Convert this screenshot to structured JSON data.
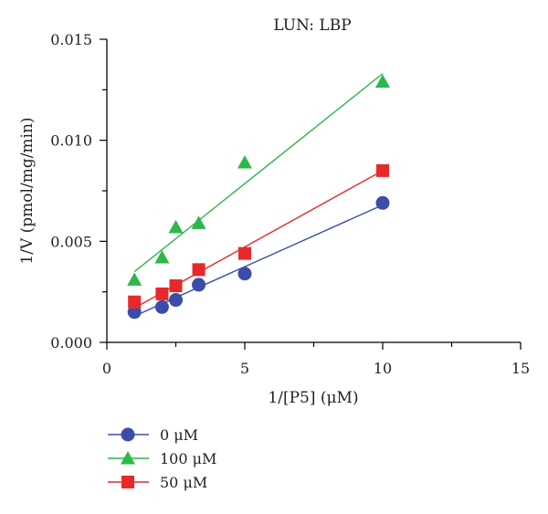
{
  "chart_data": {
    "type": "scatter",
    "title": "LUN: LBP",
    "xlabel": "1/[P5] (μM)",
    "ylabel": "1/V (pmol/mg/min)",
    "xlim": [
      0,
      15
    ],
    "ylim": [
      0,
      0.015
    ],
    "x_ticks": [
      "0",
      "5",
      "10",
      "15"
    ],
    "y_ticks": [
      "0.000",
      "0.005",
      "0.010",
      "0.015"
    ],
    "legend_position": "bottom-left",
    "series": [
      {
        "name": "0 μM",
        "marker": "circle",
        "color": "#3b4da8",
        "x": [
          1,
          2,
          2.5,
          3.33,
          5,
          10
        ],
        "y": [
          0.0015,
          0.00175,
          0.0021,
          0.00285,
          0.0034,
          0.0069
        ],
        "fit_line": {
          "x": [
            1,
            10
          ],
          "y": [
            0.0013,
            0.0068
          ]
        }
      },
      {
        "name": "100 μM",
        "marker": "triangle",
        "color": "#2db84a",
        "x": [
          1,
          2,
          2.5,
          3.33,
          5,
          10
        ],
        "y": [
          0.0031,
          0.0042,
          0.0057,
          0.0059,
          0.0089,
          0.0129
        ],
        "fit_line": {
          "x": [
            1,
            10
          ],
          "y": [
            0.0035,
            0.0133
          ]
        }
      },
      {
        "name": "50 μM",
        "marker": "square",
        "color": "#e8282a",
        "x": [
          1,
          2,
          2.5,
          3.33,
          5,
          10
        ],
        "y": [
          0.002,
          0.0024,
          0.0028,
          0.0036,
          0.0044,
          0.0085
        ],
        "fit_line": {
          "x": [
            1,
            10
          ],
          "y": [
            0.0017,
            0.0085
          ]
        }
      }
    ]
  }
}
